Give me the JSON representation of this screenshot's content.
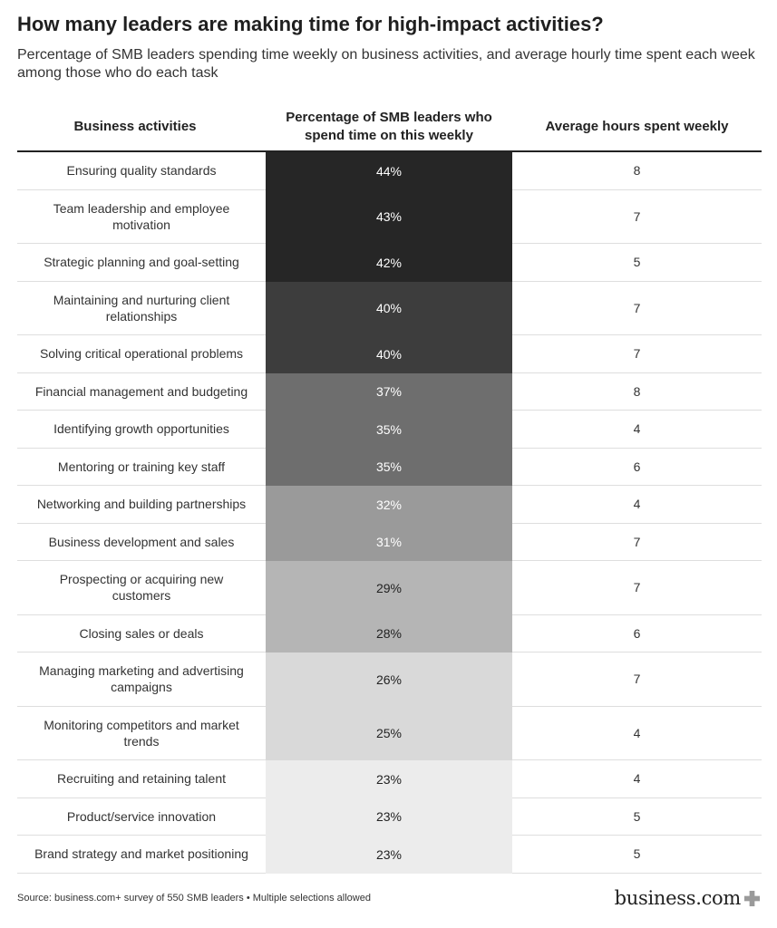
{
  "title": "How many leaders are making time for high-impact activities?",
  "subtitle": "Percentage of SMB leaders spending time weekly on business activities, and average hourly time spent each week among those who do each task",
  "chart_data": {
    "type": "table",
    "columns": [
      "Business activities",
      "Percentage of SMB leaders who spend time on this weekly",
      "Average hours spent weekly"
    ],
    "rows": [
      {
        "activity": "Ensuring quality standards",
        "pct_label": "44%",
        "pct": 44,
        "hours": "8",
        "lines": 1
      },
      {
        "activity": "Team leadership and employee motivation",
        "pct_label": "43%",
        "pct": 43,
        "hours": "7",
        "lines": 2
      },
      {
        "activity": "Strategic planning and goal-setting",
        "pct_label": "42%",
        "pct": 42,
        "hours": "5",
        "lines": 1
      },
      {
        "activity": "Maintaining and nurturing client relationships",
        "pct_label": "40%",
        "pct": 40,
        "hours": "7",
        "lines": 2
      },
      {
        "activity": "Solving critical operational problems",
        "pct_label": "40%",
        "pct": 40,
        "hours": "7",
        "lines": 1
      },
      {
        "activity": "Financial management and budgeting",
        "pct_label": "37%",
        "pct": 37,
        "hours": "8",
        "lines": 1
      },
      {
        "activity": "Identifying growth opportunities",
        "pct_label": "35%",
        "pct": 35,
        "hours": "4",
        "lines": 1
      },
      {
        "activity": "Mentoring or training key staff",
        "pct_label": "35%",
        "pct": 35,
        "hours": "6",
        "lines": 1
      },
      {
        "activity": "Networking and building partnerships",
        "pct_label": "32%",
        "pct": 32,
        "hours": "4",
        "lines": 1
      },
      {
        "activity": "Business development and sales",
        "pct_label": "31%",
        "pct": 31,
        "hours": "7",
        "lines": 1
      },
      {
        "activity": "Prospecting or acquiring new customers",
        "pct_label": "29%",
        "pct": 29,
        "hours": "7",
        "lines": 2
      },
      {
        "activity": "Closing sales or deals",
        "pct_label": "28%",
        "pct": 28,
        "hours": "6",
        "lines": 1
      },
      {
        "activity": "Managing marketing and advertising campaigns",
        "pct_label": "26%",
        "pct": 26,
        "hours": "7",
        "lines": 2
      },
      {
        "activity": "Monitoring competitors and market trends",
        "pct_label": "25%",
        "pct": 25,
        "hours": "4",
        "lines": 2
      },
      {
        "activity": "Recruiting and retaining talent",
        "pct_label": "23%",
        "pct": 23,
        "hours": "4",
        "lines": 1
      },
      {
        "activity": "Product/service innovation",
        "pct_label": "23%",
        "pct": 23,
        "hours": "5",
        "lines": 1
      },
      {
        "activity": "Brand strategy and market positioning",
        "pct_label": "23%",
        "pct": 23,
        "hours": "5",
        "lines": 1
      }
    ],
    "color_scale": {
      "min_value": 23,
      "max_value": 44,
      "colors": [
        {
          "from": 42,
          "to": 44,
          "fill": "#262626",
          "text": "#ffffff"
        },
        {
          "from": 40,
          "to": 41,
          "fill": "#3d3d3d",
          "text": "#ffffff"
        },
        {
          "from": 35,
          "to": 39,
          "fill": "#6e6e6e",
          "text": "#ffffff"
        },
        {
          "from": 31,
          "to": 34,
          "fill": "#9a9a9a",
          "text": "#ffffff"
        },
        {
          "from": 28,
          "to": 30,
          "fill": "#b5b5b5",
          "text": "#222222"
        },
        {
          "from": 25,
          "to": 27,
          "fill": "#d9d9d9",
          "text": "#222222"
        },
        {
          "from": 23,
          "to": 24,
          "fill": "#ececec",
          "text": "#222222"
        }
      ]
    }
  },
  "source": "Source: business.com+ survey of 550 SMB leaders • Multiple selections allowed",
  "logo": {
    "text": "business.com",
    "icon": "plus-icon"
  }
}
